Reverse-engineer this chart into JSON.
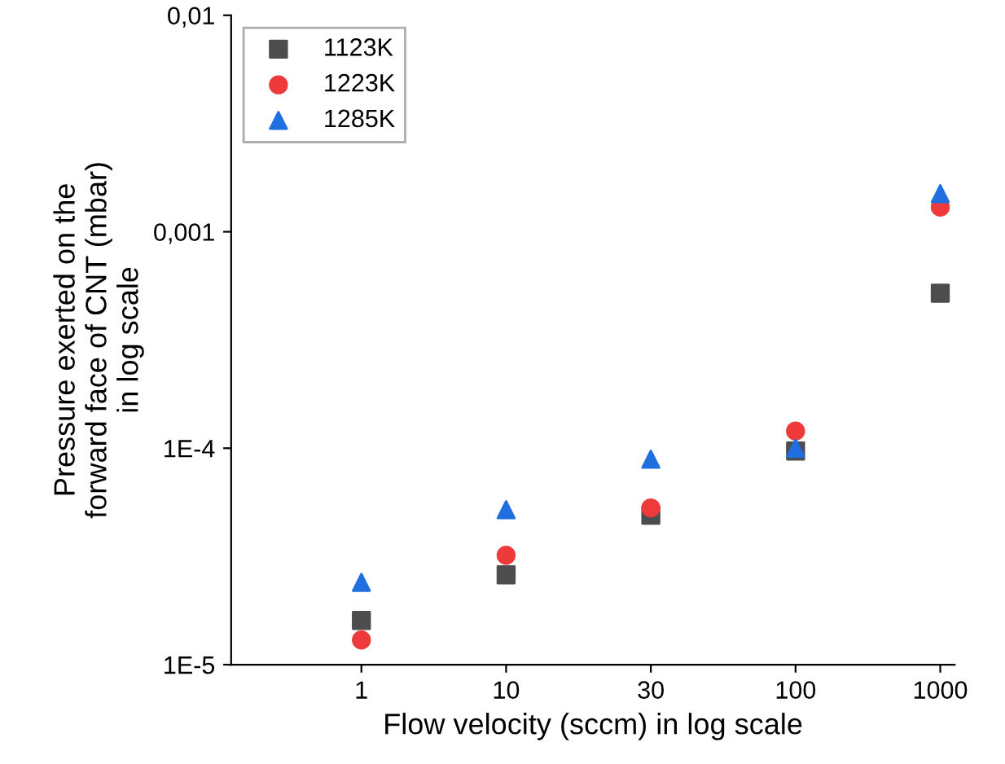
{
  "chart_data": {
    "type": "scatter",
    "xlabel": "Flow velocity (sccm) in log scale",
    "ylabel": "Pressure exerted on the\nforward face of CNT (mbar)\nin log scale",
    "categories": [
      "1",
      "10",
      "30",
      "100",
      "1000"
    ],
    "series": [
      {
        "name": "1123K",
        "color": "#4d4d4d",
        "marker": "square",
        "values": [
          1.6e-05,
          2.6e-05,
          4.9e-05,
          9.7e-05,
          0.00052
        ]
      },
      {
        "name": "1223K",
        "color": "#ee3a3a",
        "marker": "circle",
        "values": [
          1.3e-05,
          3.2e-05,
          5.3e-05,
          0.00012,
          0.0013
        ]
      },
      {
        "name": "1285K",
        "color": "#1f6fe0",
        "marker": "triangle",
        "values": [
          2.4e-05,
          5.2e-05,
          8.9e-05,
          0.0001,
          0.0015
        ]
      }
    ],
    "log": "y",
    "ylim": [
      1e-05,
      0.01
    ],
    "yticks": [
      {
        "value": 1e-05,
        "label": "1E-5"
      },
      {
        "value": 0.0001,
        "label": "1E-4"
      },
      {
        "value": 0.001,
        "label": "0,001"
      },
      {
        "value": 0.01,
        "label": "0,01"
      }
    ],
    "grid": false,
    "legend": "top left"
  }
}
